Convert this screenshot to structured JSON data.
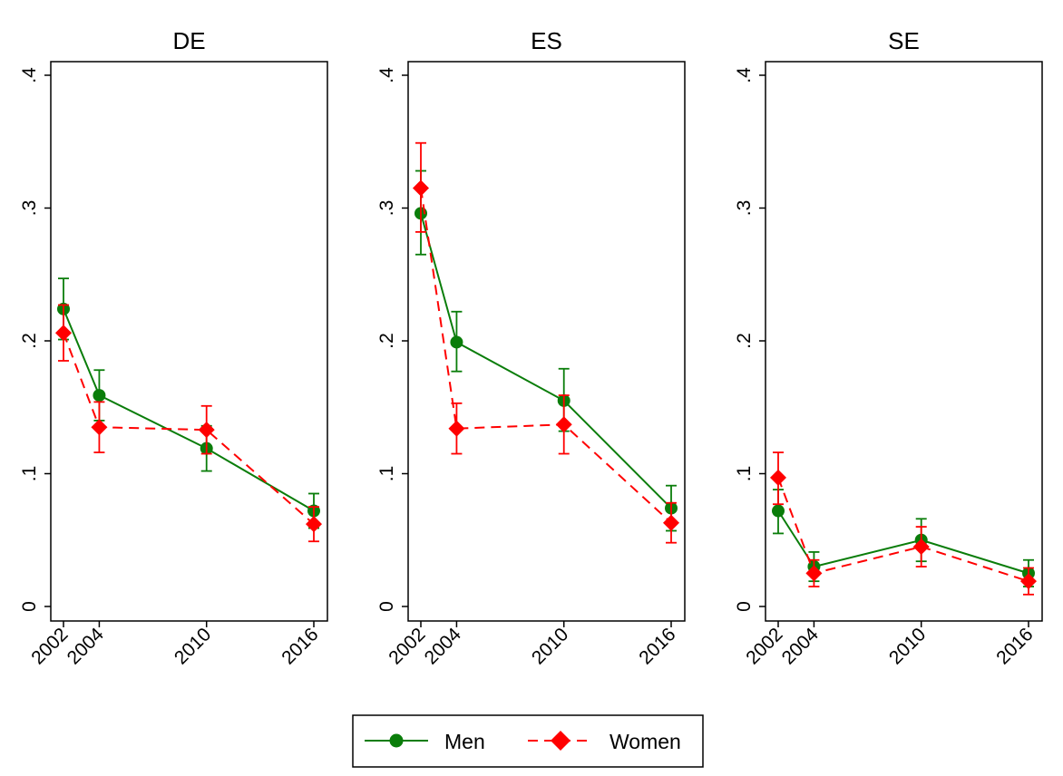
{
  "chart_data": [
    {
      "type": "line",
      "title": "DE",
      "x": [
        2002,
        2004,
        2010,
        2016
      ],
      "ylim": [
        0,
        0.4
      ],
      "yticks": [
        0,
        0.1,
        0.2,
        0.3,
        0.4
      ],
      "ytick_labels": [
        "0",
        ".1",
        ".2",
        ".3",
        ".4"
      ],
      "xtick_labels": [
        "2002",
        "2004",
        "2010",
        "2016"
      ],
      "series": [
        {
          "name": "Men",
          "values": [
            0.224,
            0.159,
            0.119,
            0.072
          ],
          "ci_low": [
            0.201,
            0.14,
            0.102,
            0.059
          ],
          "ci_high": [
            0.247,
            0.178,
            0.136,
            0.085
          ]
        },
        {
          "name": "Women",
          "values": [
            0.206,
            0.135,
            0.133,
            0.062
          ],
          "ci_low": [
            0.185,
            0.116,
            0.115,
            0.049
          ],
          "ci_high": [
            0.227,
            0.154,
            0.151,
            0.075
          ]
        }
      ]
    },
    {
      "type": "line",
      "title": "ES",
      "x": [
        2002,
        2004,
        2010,
        2016
      ],
      "ylim": [
        0,
        0.4
      ],
      "yticks": [
        0,
        0.1,
        0.2,
        0.3,
        0.4
      ],
      "ytick_labels": [
        "0",
        ".1",
        ".2",
        ".3",
        ".4"
      ],
      "xtick_labels": [
        "2002",
        "2004",
        "2010",
        "2016"
      ],
      "series": [
        {
          "name": "Men",
          "values": [
            0.296,
            0.199,
            0.155,
            0.074
          ],
          "ci_low": [
            0.265,
            0.177,
            0.132,
            0.057
          ],
          "ci_high": [
            0.328,
            0.222,
            0.179,
            0.091
          ]
        },
        {
          "name": "Women",
          "values": [
            0.315,
            0.134,
            0.137,
            0.063
          ],
          "ci_low": [
            0.282,
            0.115,
            0.115,
            0.048
          ],
          "ci_high": [
            0.349,
            0.153,
            0.159,
            0.078
          ]
        }
      ]
    },
    {
      "type": "line",
      "title": "SE",
      "x": [
        2002,
        2004,
        2010,
        2016
      ],
      "ylim": [
        0,
        0.4
      ],
      "yticks": [
        0,
        0.1,
        0.2,
        0.3,
        0.4
      ],
      "ytick_labels": [
        "0",
        ".1",
        ".2",
        ".3",
        ".4"
      ],
      "xtick_labels": [
        "2002",
        "2004",
        "2010",
        "2016"
      ],
      "series": [
        {
          "name": "Men",
          "values": [
            0.072,
            0.03,
            0.05,
            0.025
          ],
          "ci_low": [
            0.055,
            0.019,
            0.034,
            0.015
          ],
          "ci_high": [
            0.088,
            0.041,
            0.066,
            0.035
          ]
        },
        {
          "name": "Women",
          "values": [
            0.097,
            0.025,
            0.045,
            0.019
          ],
          "ci_low": [
            0.077,
            0.015,
            0.03,
            0.009
          ],
          "ci_high": [
            0.116,
            0.035,
            0.06,
            0.029
          ]
        }
      ]
    }
  ],
  "legend": {
    "placement": "bottom-center",
    "entries": [
      {
        "label": "Men",
        "color": "#0a7d0a",
        "marker": "circle",
        "line": "solid"
      },
      {
        "label": "Women",
        "color": "#ff0000",
        "marker": "diamond",
        "line": "dashed"
      }
    ]
  },
  "colors": {
    "men": "#0a7d0a",
    "women": "#ff0000",
    "axis": "#000000",
    "background": "#ffffff"
  }
}
